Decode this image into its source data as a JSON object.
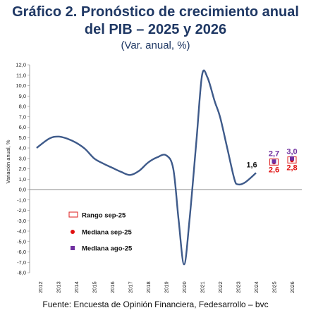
{
  "title_line1": "Gráfico 2. Pronóstico de crecimiento anual",
  "title_line2": "del PIB – 2025 y 2026",
  "subtitle": "(Var. anual, %)",
  "source": "Fuente: Encuesta de Opinión Financiera, Fedesarrollo – bvc",
  "chart_data": {
    "type": "line",
    "ylabel": "Variación anual, %",
    "ylim": [
      -8.0,
      12.0
    ],
    "ytick_step": 1.0,
    "x_categories": [
      "2012",
      "2013",
      "2014",
      "2015",
      "2016",
      "2017",
      "2018",
      "2019",
      "2020",
      "2021",
      "2022",
      "2023",
      "2024",
      "2025",
      "2026"
    ],
    "line_color": "#3e5a8a",
    "series": [
      {
        "points": [
          [
            2011.8,
            4.0
          ],
          [
            2012.5,
            4.9
          ],
          [
            2013.0,
            5.1
          ],
          [
            2013.5,
            4.9
          ],
          [
            2014.0,
            4.5
          ],
          [
            2014.5,
            3.9
          ],
          [
            2015.0,
            3.0
          ],
          [
            2015.5,
            2.5
          ],
          [
            2016.0,
            2.1
          ],
          [
            2016.5,
            1.7
          ],
          [
            2017.0,
            1.4
          ],
          [
            2017.5,
            1.8
          ],
          [
            2018.0,
            2.6
          ],
          [
            2018.5,
            3.1
          ],
          [
            2019.0,
            3.3
          ],
          [
            2019.4,
            2.0
          ],
          [
            2019.7,
            -3.0
          ],
          [
            2020.0,
            -7.2
          ],
          [
            2020.3,
            -3.0
          ],
          [
            2020.7,
            5.0
          ],
          [
            2021.0,
            11.0
          ],
          [
            2021.3,
            10.8
          ],
          [
            2021.7,
            8.5
          ],
          [
            2022.0,
            7.0
          ],
          [
            2022.4,
            4.0
          ],
          [
            2022.8,
            1.0
          ],
          [
            2023.0,
            0.5
          ],
          [
            2023.4,
            0.7
          ],
          [
            2024.0,
            1.6
          ]
        ]
      }
    ],
    "annotations": [
      {
        "x": "2024",
        "label": "1,6",
        "color": "#1a1a1a"
      }
    ],
    "forecasts": [
      {
        "x": "2025",
        "rango": [
          2.35,
          2.95
        ],
        "mediana_sep": 2.6,
        "mediana_ago": 2.7,
        "label_top": "2,7",
        "label_bottom": "2,6"
      },
      {
        "x": "2026",
        "rango": [
          2.55,
          3.15
        ],
        "mediana_sep": 2.8,
        "mediana_ago": 3.0,
        "label_top": "3,0",
        "label_bottom": "2,8"
      }
    ],
    "legend": [
      {
        "label": "Rango sep-25",
        "marker": "rect-outline",
        "color": "#e03030"
      },
      {
        "label": "Mediana sep-25",
        "marker": "circle",
        "color": "#e01010"
      },
      {
        "label": "Mediana ago-25",
        "marker": "square",
        "color": "#7030a0"
      }
    ],
    "colors": {
      "top_label": "#7030a0",
      "bottom_label": "#e01010",
      "axis": "#888888"
    }
  }
}
